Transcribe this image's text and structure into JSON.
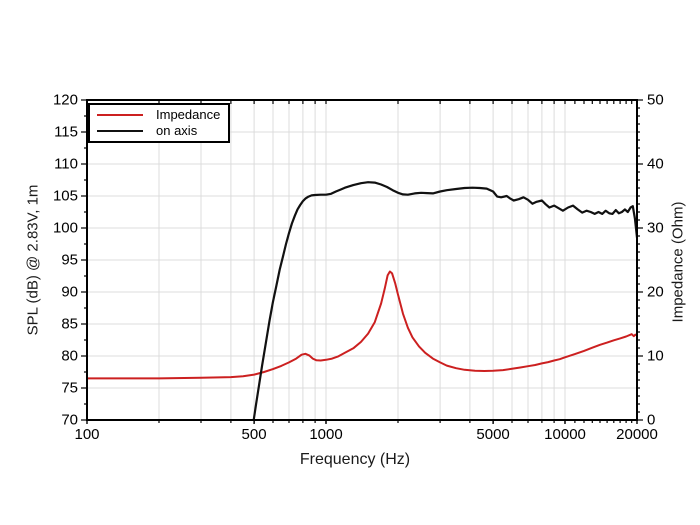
{
  "figure": {
    "background": "#ffffff",
    "border_color": "#000000",
    "grid_color": "#dcdcdc"
  },
  "axes": {
    "x": {
      "label": "Frequency (Hz)",
      "scale": "log",
      "min": 100,
      "max": 20000,
      "tick_values": [
        100,
        500,
        1000,
        5000,
        10000,
        20000
      ],
      "tick_labels": [
        "100",
        "500",
        "1000",
        "5000",
        "10000",
        "20000"
      ],
      "grid_ticks": [
        200,
        300,
        400,
        500,
        600,
        700,
        800,
        900,
        1000,
        2000,
        3000,
        4000,
        5000,
        6000,
        7000,
        8000,
        9000,
        10000
      ],
      "tick_only": [
        11000,
        12000,
        13000,
        14000,
        15000,
        16000,
        17000,
        18000,
        19000
      ]
    },
    "y_left": {
      "label": "SPL (dB) @ 2.83V, 1m",
      "min": 70,
      "max": 120,
      "major_step": 5,
      "minor_step": 2.5,
      "tick_values": [
        70,
        75,
        80,
        85,
        90,
        95,
        100,
        105,
        110,
        115,
        120
      ],
      "tick_labels": [
        "70",
        "75",
        "80",
        "85",
        "90",
        "95",
        "100",
        "105",
        "110",
        "115",
        "120"
      ]
    },
    "y_right": {
      "label": "Impedance (Ohm)",
      "min": 0,
      "max": 50,
      "major_step": 10,
      "minor_step": 1.25,
      "tick_values": [
        0,
        10,
        20,
        30,
        40,
        50
      ],
      "tick_labels": [
        "0",
        "10",
        "20",
        "30",
        "40",
        "50"
      ]
    }
  },
  "legend": {
    "items": [
      {
        "label": "Impedance",
        "color": "#cc2020"
      },
      {
        "label": "on axis",
        "color": "#111111"
      }
    ]
  },
  "chart_data": {
    "type": "line",
    "title": "",
    "xlabel": "Frequency (Hz)",
    "ylabel_left": "SPL (dB) @ 2.83V, 1m",
    "ylabel_right": "Impedance (Ohm)",
    "x_scale": "log",
    "x_range": [
      100,
      20000
    ],
    "y_left_range": [
      70,
      120
    ],
    "y_right_range": [
      0,
      50
    ],
    "grid": true,
    "legend_position": "top-left",
    "series": [
      {
        "name": "Impedance",
        "axis": "right",
        "unit": "Ohm",
        "color": "#cc2020",
        "width": 2,
        "points": [
          [
            100,
            6.5
          ],
          [
            200,
            6.5
          ],
          [
            300,
            6.6
          ],
          [
            400,
            6.7
          ],
          [
            450,
            6.85
          ],
          [
            500,
            7.1
          ],
          [
            550,
            7.5
          ],
          [
            600,
            7.95
          ],
          [
            650,
            8.45
          ],
          [
            700,
            9.0
          ],
          [
            750,
            9.6
          ],
          [
            790,
            10.2
          ],
          [
            820,
            10.35
          ],
          [
            850,
            10.1
          ],
          [
            880,
            9.6
          ],
          [
            910,
            9.35
          ],
          [
            950,
            9.3
          ],
          [
            1000,
            9.4
          ],
          [
            1060,
            9.6
          ],
          [
            1120,
            9.9
          ],
          [
            1200,
            10.5
          ],
          [
            1300,
            11.2
          ],
          [
            1400,
            12.2
          ],
          [
            1500,
            13.5
          ],
          [
            1600,
            15.3
          ],
          [
            1700,
            18.2
          ],
          [
            1760,
            20.5
          ],
          [
            1810,
            22.6
          ],
          [
            1850,
            23.2
          ],
          [
            1890,
            22.9
          ],
          [
            1950,
            21.3
          ],
          [
            2000,
            19.6
          ],
          [
            2100,
            16.6
          ],
          [
            2200,
            14.4
          ],
          [
            2300,
            12.9
          ],
          [
            2450,
            11.5
          ],
          [
            2600,
            10.5
          ],
          [
            2800,
            9.6
          ],
          [
            3000,
            9.0
          ],
          [
            3200,
            8.5
          ],
          [
            3500,
            8.1
          ],
          [
            3800,
            7.85
          ],
          [
            4200,
            7.7
          ],
          [
            4600,
            7.65
          ],
          [
            5000,
            7.7
          ],
          [
            5500,
            7.8
          ],
          [
            6000,
            8.0
          ],
          [
            6500,
            8.2
          ],
          [
            7000,
            8.4
          ],
          [
            7500,
            8.6
          ],
          [
            8000,
            8.85
          ],
          [
            8500,
            9.05
          ],
          [
            9000,
            9.3
          ],
          [
            9500,
            9.5
          ],
          [
            10000,
            9.8
          ],
          [
            11000,
            10.3
          ],
          [
            12000,
            10.8
          ],
          [
            13000,
            11.3
          ],
          [
            14000,
            11.75
          ],
          [
            15000,
            12.1
          ],
          [
            16000,
            12.45
          ],
          [
            17000,
            12.75
          ],
          [
            18000,
            13.05
          ],
          [
            19000,
            13.4
          ],
          [
            19400,
            13.1
          ],
          [
            19700,
            13.35
          ],
          [
            20000,
            13.2
          ]
        ]
      },
      {
        "name": "on axis",
        "axis": "left",
        "unit": "dB",
        "color": "#111111",
        "width": 2.2,
        "points": [
          [
            498,
            70
          ],
          [
            510,
            72.5
          ],
          [
            525,
            75.5
          ],
          [
            540,
            78.5
          ],
          [
            560,
            82
          ],
          [
            580,
            85.5
          ],
          [
            600,
            88.5
          ],
          [
            620,
            91
          ],
          [
            640,
            93.5
          ],
          [
            660,
            95.5
          ],
          [
            680,
            97.5
          ],
          [
            700,
            99.2
          ],
          [
            720,
            100.7
          ],
          [
            740,
            101.9
          ],
          [
            760,
            102.9
          ],
          [
            780,
            103.6
          ],
          [
            800,
            104.2
          ],
          [
            820,
            104.6
          ],
          [
            845,
            104.9
          ],
          [
            870,
            105.1
          ],
          [
            900,
            105.15
          ],
          [
            950,
            105.2
          ],
          [
            1000,
            105.2
          ],
          [
            1050,
            105.35
          ],
          [
            1100,
            105.7
          ],
          [
            1150,
            106.0
          ],
          [
            1200,
            106.3
          ],
          [
            1300,
            106.7
          ],
          [
            1400,
            107.0
          ],
          [
            1500,
            107.15
          ],
          [
            1600,
            107.1
          ],
          [
            1700,
            106.8
          ],
          [
            1800,
            106.4
          ],
          [
            1900,
            105.9
          ],
          [
            2000,
            105.5
          ],
          [
            2100,
            105.25
          ],
          [
            2200,
            105.2
          ],
          [
            2350,
            105.4
          ],
          [
            2500,
            105.5
          ],
          [
            2650,
            105.45
          ],
          [
            2800,
            105.4
          ],
          [
            3000,
            105.7
          ],
          [
            3200,
            105.9
          ],
          [
            3500,
            106.1
          ],
          [
            3800,
            106.25
          ],
          [
            4100,
            106.3
          ],
          [
            4400,
            106.25
          ],
          [
            4700,
            106.15
          ],
          [
            5000,
            105.7
          ],
          [
            5200,
            104.9
          ],
          [
            5400,
            104.8
          ],
          [
            5700,
            105.0
          ],
          [
            5900,
            104.6
          ],
          [
            6100,
            104.3
          ],
          [
            6400,
            104.5
          ],
          [
            6700,
            104.8
          ],
          [
            7000,
            104.4
          ],
          [
            7300,
            103.8
          ],
          [
            7600,
            104.1
          ],
          [
            8000,
            104.3
          ],
          [
            8300,
            103.7
          ],
          [
            8600,
            103.2
          ],
          [
            9000,
            103.5
          ],
          [
            9400,
            103.1
          ],
          [
            9800,
            102.7
          ],
          [
            10300,
            103.2
          ],
          [
            10800,
            103.5
          ],
          [
            11300,
            102.9
          ],
          [
            11800,
            102.4
          ],
          [
            12300,
            102.7
          ],
          [
            12800,
            102.5
          ],
          [
            13300,
            102.2
          ],
          [
            13800,
            102.5
          ],
          [
            14300,
            102.2
          ],
          [
            14800,
            102.7
          ],
          [
            15300,
            102.3
          ],
          [
            15800,
            102.2
          ],
          [
            16300,
            102.8
          ],
          [
            16800,
            102.3
          ],
          [
            17300,
            102.5
          ],
          [
            17800,
            102.9
          ],
          [
            18300,
            102.5
          ],
          [
            18800,
            103.2
          ],
          [
            19200,
            103.4
          ],
          [
            19600,
            101.5
          ],
          [
            20000,
            98.5
          ]
        ]
      }
    ]
  }
}
